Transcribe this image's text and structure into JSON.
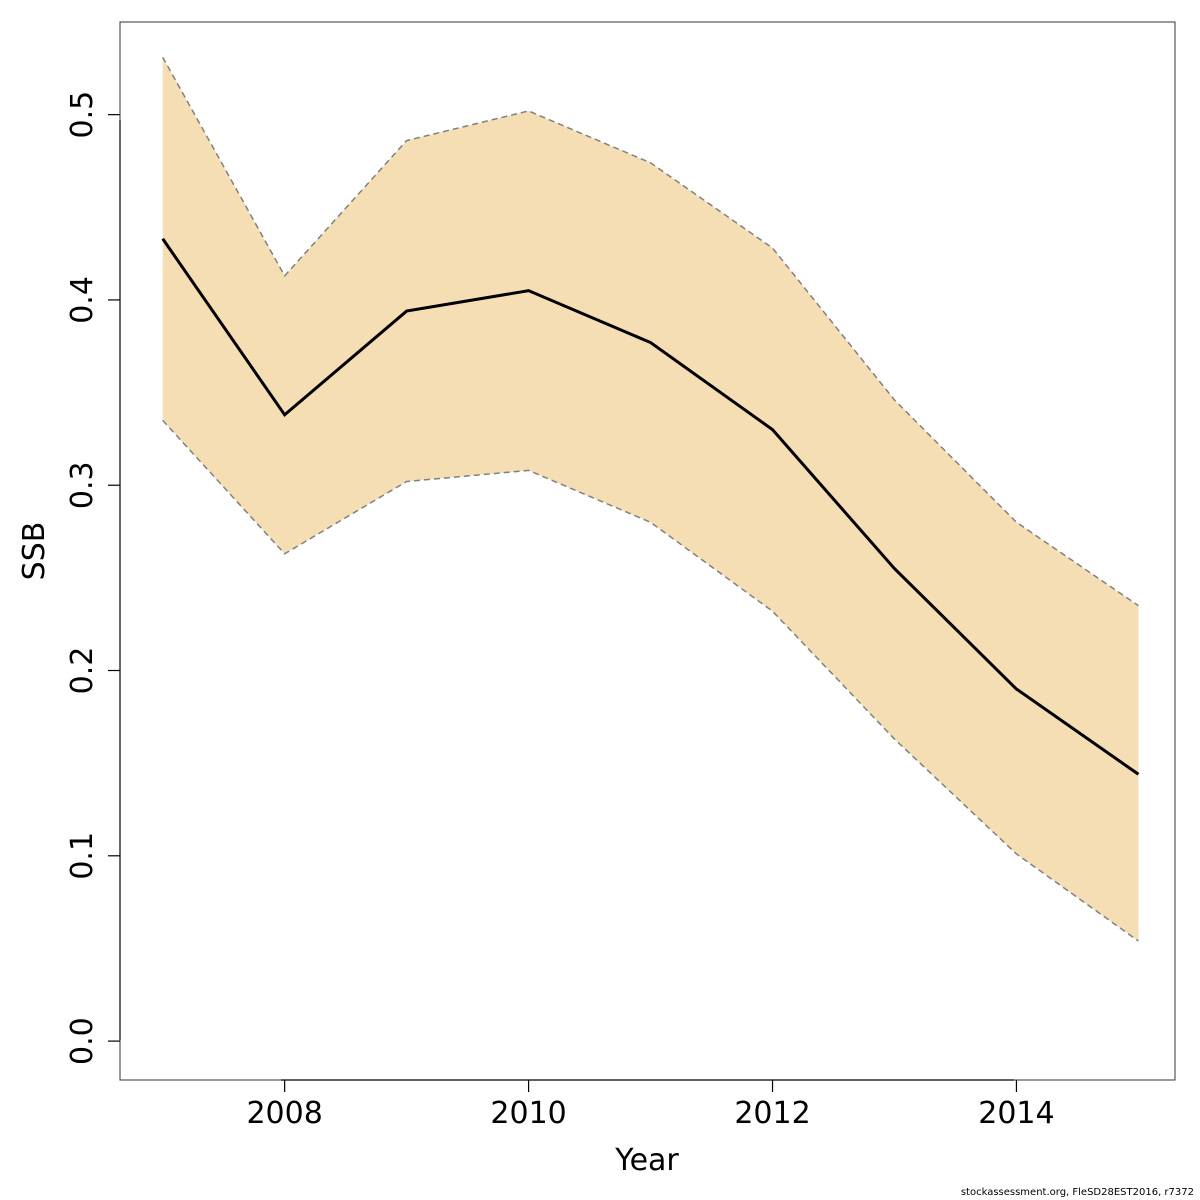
{
  "chart_data": {
    "type": "area",
    "title": "",
    "xlabel": "Year",
    "ylabel": "SSB",
    "xlim": [
      2006.65,
      2015.3
    ],
    "ylim": [
      -0.021,
      0.55
    ],
    "x_ticks": [
      2008,
      2010,
      2012,
      2014
    ],
    "y_ticks": [
      0.0,
      0.1,
      0.2,
      0.3,
      0.4,
      0.5
    ],
    "x_tick_labels": [
      "2008",
      "2010",
      "2012",
      "2014"
    ],
    "y_tick_labels": [
      "0.0",
      "0.1",
      "0.2",
      "0.3",
      "0.4",
      "0.5"
    ],
    "x": [
      2007,
      2008,
      2009,
      2010,
      2011,
      2012,
      2013,
      2014,
      2015
    ],
    "series": [
      {
        "role": "estimate",
        "values": [
          0.433,
          0.338,
          0.394,
          0.405,
          0.377,
          0.33,
          0.255,
          0.19,
          0.144
        ]
      },
      {
        "role": "upper",
        "values": [
          0.531,
          0.413,
          0.486,
          0.502,
          0.474,
          0.428,
          0.346,
          0.28,
          0.235
        ]
      },
      {
        "role": "lower",
        "values": [
          0.335,
          0.263,
          0.302,
          0.308,
          0.28,
          0.232,
          0.163,
          0.101,
          0.054
        ]
      }
    ],
    "grid": false,
    "colors": {
      "band": "#F5DEB3",
      "line": "#000000",
      "bounds": "#808080",
      "axis": "#000000"
    }
  },
  "footer": "stockassessment.org, FleSD28EST2016, r7372"
}
